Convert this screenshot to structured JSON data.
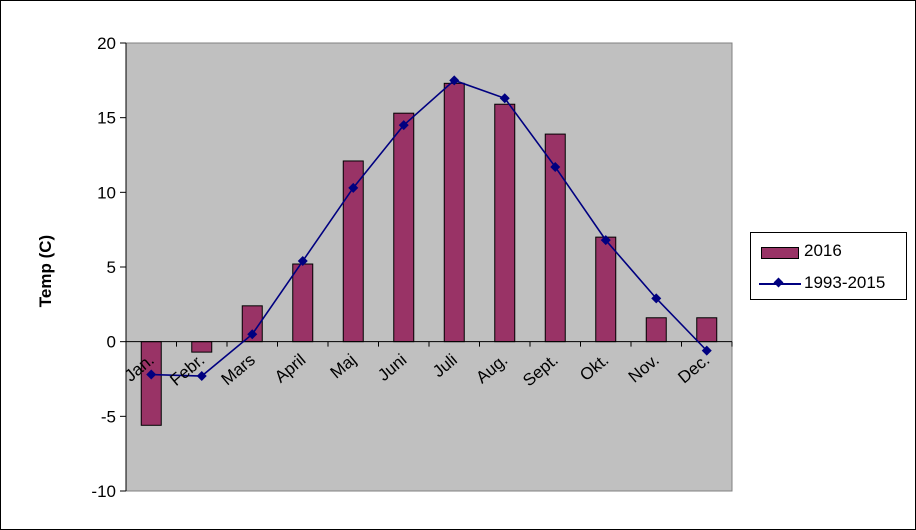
{
  "chart_data": {
    "type": "bar",
    "categories": [
      "Jan.",
      "Febr.",
      "Mars",
      "April",
      "Maj",
      "Juni",
      "Juli",
      "Aug.",
      "Sept.",
      "Okt.",
      "Nov.",
      "Dec."
    ],
    "series": [
      {
        "name": "2016",
        "kind": "bar",
        "color": "#993366",
        "values": [
          -5.6,
          -0.7,
          2.4,
          5.2,
          12.1,
          15.3,
          17.3,
          15.9,
          13.9,
          7.0,
          1.6,
          1.6
        ]
      },
      {
        "name": "1993-2015",
        "kind": "line",
        "color": "#000080",
        "marker": "diamond",
        "values": [
          -2.2,
          -2.3,
          0.5,
          5.4,
          10.3,
          14.5,
          17.5,
          16.3,
          11.7,
          6.8,
          2.9,
          -0.6
        ]
      }
    ],
    "xlabel": "",
    "ylabel": "Temp (C)",
    "ylim": [
      -10,
      20
    ],
    "yticks": [
      -10,
      -5,
      0,
      5,
      10,
      15,
      20
    ],
    "grid": false,
    "plot_background": "#c0c0c0",
    "legend_position": "right"
  }
}
